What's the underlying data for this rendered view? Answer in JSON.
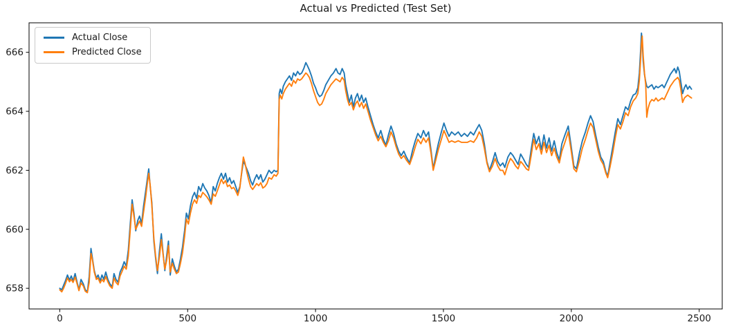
{
  "title": "Actual vs Predicted (Test Set)",
  "chart_data": {
    "type": "line",
    "title": "Actual vs Predicted (Test Set)",
    "xlabel": "",
    "ylabel": "",
    "grid": false,
    "legend_position": "upper left",
    "xlim": [
      -120,
      2590
    ],
    "ylim": [
      657.3,
      667.0
    ],
    "xticks": [
      0,
      500,
      1000,
      1500,
      2000,
      2500
    ],
    "yticks": [
      658,
      660,
      662,
      664,
      666
    ],
    "axis_color": "#000000",
    "tick_label_color": "#1a1a1a",
    "series": [
      {
        "key": "actual",
        "name": "Actual Close",
        "color": "#1f77b4"
      },
      {
        "key": "predicted",
        "name": "Predicted Close",
        "color": "#ff7f0e"
      }
    ],
    "points_format": [
      "x",
      "actual_close",
      "predicted_close"
    ],
    "points": [
      [
        0,
        658.0,
        657.95
      ],
      [
        8,
        657.95,
        657.88
      ],
      [
        15,
        658.1,
        658.0
      ],
      [
        22,
        658.25,
        658.15
      ],
      [
        30,
        658.45,
        658.35
      ],
      [
        38,
        658.28,
        658.22
      ],
      [
        45,
        658.42,
        658.3
      ],
      [
        52,
        658.25,
        658.2
      ],
      [
        60,
        658.5,
        658.38
      ],
      [
        68,
        658.2,
        658.15
      ],
      [
        75,
        657.95,
        657.92
      ],
      [
        83,
        658.3,
        658.18
      ],
      [
        92,
        658.15,
        658.08
      ],
      [
        100,
        657.95,
        657.9
      ],
      [
        108,
        657.88,
        657.85
      ],
      [
        115,
        658.4,
        658.2
      ],
      [
        122,
        659.35,
        659.18
      ],
      [
        128,
        659.0,
        658.95
      ],
      [
        135,
        658.6,
        658.55
      ],
      [
        143,
        658.35,
        658.3
      ],
      [
        150,
        658.45,
        658.35
      ],
      [
        158,
        658.25,
        658.18
      ],
      [
        165,
        658.45,
        658.3
      ],
      [
        172,
        658.3,
        658.22
      ],
      [
        180,
        658.55,
        658.4
      ],
      [
        188,
        658.3,
        658.22
      ],
      [
        196,
        658.15,
        658.08
      ],
      [
        205,
        658.05,
        658.0
      ],
      [
        212,
        658.5,
        658.35
      ],
      [
        220,
        658.3,
        658.2
      ],
      [
        228,
        658.2,
        658.12
      ],
      [
        236,
        658.55,
        658.42
      ],
      [
        244,
        658.7,
        658.58
      ],
      [
        252,
        658.9,
        658.75
      ],
      [
        260,
        658.75,
        658.65
      ],
      [
        268,
        659.3,
        659.1
      ],
      [
        275,
        660.1,
        659.9
      ],
      [
        283,
        661.0,
        660.85
      ],
      [
        290,
        660.55,
        660.45
      ],
      [
        297,
        659.95,
        660.0
      ],
      [
        305,
        660.3,
        660.15
      ],
      [
        312,
        660.45,
        660.28
      ],
      [
        320,
        660.2,
        660.1
      ],
      [
        328,
        660.8,
        660.6
      ],
      [
        336,
        661.3,
        661.1
      ],
      [
        343,
        661.75,
        661.6
      ],
      [
        348,
        662.05,
        661.9
      ],
      [
        354,
        661.4,
        661.45
      ],
      [
        360,
        660.9,
        660.8
      ],
      [
        368,
        659.6,
        659.7
      ],
      [
        375,
        659.0,
        659.08
      ],
      [
        382,
        658.5,
        658.6
      ],
      [
        390,
        659.3,
        659.1
      ],
      [
        397,
        659.85,
        659.65
      ],
      [
        404,
        659.2,
        659.15
      ],
      [
        411,
        658.6,
        658.65
      ],
      [
        418,
        659.1,
        658.95
      ],
      [
        425,
        659.6,
        659.45
      ],
      [
        432,
        658.45,
        658.55
      ],
      [
        440,
        659.0,
        658.85
      ],
      [
        448,
        658.75,
        658.65
      ],
      [
        456,
        658.55,
        658.5
      ],
      [
        464,
        658.65,
        658.55
      ],
      [
        472,
        659.0,
        658.85
      ],
      [
        480,
        659.4,
        659.2
      ],
      [
        488,
        659.95,
        659.75
      ],
      [
        495,
        660.55,
        660.35
      ],
      [
        503,
        660.35,
        660.18
      ],
      [
        511,
        660.8,
        660.55
      ],
      [
        519,
        661.1,
        660.85
      ],
      [
        527,
        661.25,
        661.0
      ],
      [
        535,
        661.05,
        660.88
      ],
      [
        543,
        661.45,
        661.15
      ],
      [
        551,
        661.3,
        661.08
      ],
      [
        559,
        661.55,
        661.25
      ],
      [
        567,
        661.4,
        661.18
      ],
      [
        575,
        661.3,
        661.1
      ],
      [
        583,
        661.15,
        661.0
      ],
      [
        592,
        660.9,
        660.85
      ],
      [
        600,
        661.45,
        661.2
      ],
      [
        608,
        661.3,
        661.12
      ],
      [
        616,
        661.55,
        661.3
      ],
      [
        624,
        661.75,
        661.5
      ],
      [
        632,
        661.9,
        661.7
      ],
      [
        640,
        661.7,
        661.55
      ],
      [
        648,
        661.9,
        661.65
      ],
      [
        656,
        661.6,
        661.45
      ],
      [
        664,
        661.75,
        661.5
      ],
      [
        672,
        661.55,
        661.38
      ],
      [
        680,
        661.65,
        661.42
      ],
      [
        688,
        661.45,
        661.3
      ],
      [
        696,
        661.25,
        661.15
      ],
      [
        704,
        661.45,
        661.4
      ],
      [
        712,
        661.95,
        662.0
      ],
      [
        718,
        662.3,
        662.45
      ],
      [
        724,
        662.2,
        662.25
      ],
      [
        731,
        662.05,
        661.95
      ],
      [
        738,
        661.9,
        661.7
      ],
      [
        746,
        661.65,
        661.45
      ],
      [
        754,
        661.5,
        661.35
      ],
      [
        762,
        661.7,
        661.45
      ],
      [
        770,
        661.85,
        661.55
      ],
      [
        778,
        661.7,
        661.48
      ],
      [
        786,
        661.85,
        661.58
      ],
      [
        794,
        661.6,
        661.4
      ],
      [
        802,
        661.7,
        661.45
      ],
      [
        810,
        661.85,
        661.55
      ],
      [
        818,
        662.0,
        661.75
      ],
      [
        828,
        661.9,
        661.7
      ],
      [
        838,
        662.0,
        661.85
      ],
      [
        846,
        661.95,
        661.8
      ],
      [
        853,
        662.0,
        661.9
      ],
      [
        858,
        664.6,
        664.4
      ],
      [
        862,
        664.75,
        664.55
      ],
      [
        868,
        664.6,
        664.42
      ],
      [
        874,
        664.85,
        664.6
      ],
      [
        882,
        665.0,
        664.75
      ],
      [
        890,
        665.1,
        664.85
      ],
      [
        898,
        665.2,
        664.95
      ],
      [
        906,
        665.05,
        664.85
      ],
      [
        914,
        665.3,
        665.05
      ],
      [
        922,
        665.2,
        664.95
      ],
      [
        930,
        665.35,
        665.1
      ],
      [
        938,
        665.25,
        665.05
      ],
      [
        946,
        665.3,
        665.1
      ],
      [
        954,
        665.45,
        665.2
      ],
      [
        962,
        665.65,
        665.3
      ],
      [
        968,
        665.55,
        665.25
      ],
      [
        976,
        665.4,
        665.15
      ],
      [
        984,
        665.2,
        664.95
      ],
      [
        992,
        664.95,
        664.7
      ],
      [
        1000,
        664.8,
        664.5
      ],
      [
        1008,
        664.6,
        664.3
      ],
      [
        1016,
        664.5,
        664.2
      ],
      [
        1024,
        664.55,
        664.25
      ],
      [
        1032,
        664.7,
        664.4
      ],
      [
        1040,
        664.9,
        664.6
      ],
      [
        1050,
        665.05,
        664.75
      ],
      [
        1060,
        665.2,
        664.9
      ],
      [
        1070,
        665.3,
        665.0
      ],
      [
        1080,
        665.45,
        665.1
      ],
      [
        1088,
        665.3,
        665.05
      ],
      [
        1096,
        665.25,
        665.0
      ],
      [
        1104,
        665.45,
        665.15
      ],
      [
        1112,
        665.3,
        665.05
      ],
      [
        1118,
        664.9,
        664.7
      ],
      [
        1125,
        664.6,
        664.4
      ],
      [
        1132,
        664.3,
        664.2
      ],
      [
        1140,
        664.55,
        664.3
      ],
      [
        1148,
        664.15,
        664.05
      ],
      [
        1156,
        664.45,
        664.25
      ],
      [
        1164,
        664.6,
        664.35
      ],
      [
        1172,
        664.35,
        664.15
      ],
      [
        1180,
        664.55,
        664.3
      ],
      [
        1188,
        664.3,
        664.1
      ],
      [
        1196,
        664.45,
        664.25
      ],
      [
        1205,
        664.15,
        664.0
      ],
      [
        1215,
        663.85,
        663.7
      ],
      [
        1225,
        663.55,
        663.45
      ],
      [
        1235,
        663.3,
        663.2
      ],
      [
        1245,
        663.1,
        663.0
      ],
      [
        1255,
        663.35,
        663.15
      ],
      [
        1265,
        663.05,
        662.95
      ],
      [
        1275,
        662.85,
        662.8
      ],
      [
        1285,
        663.2,
        663.0
      ],
      [
        1295,
        663.5,
        663.3
      ],
      [
        1305,
        663.25,
        663.1
      ],
      [
        1315,
        662.9,
        662.8
      ],
      [
        1325,
        662.65,
        662.55
      ],
      [
        1335,
        662.5,
        662.4
      ],
      [
        1345,
        662.65,
        662.5
      ],
      [
        1355,
        662.45,
        662.35
      ],
      [
        1368,
        662.25,
        662.2
      ],
      [
        1380,
        662.7,
        662.5
      ],
      [
        1390,
        663.0,
        662.8
      ],
      [
        1400,
        663.25,
        663.05
      ],
      [
        1412,
        663.1,
        662.9
      ],
      [
        1422,
        663.35,
        663.1
      ],
      [
        1432,
        663.15,
        662.95
      ],
      [
        1442,
        663.3,
        663.1
      ],
      [
        1452,
        662.65,
        662.55
      ],
      [
        1460,
        662.05,
        662.0
      ],
      [
        1470,
        662.5,
        662.35
      ],
      [
        1480,
        662.9,
        662.7
      ],
      [
        1492,
        663.3,
        663.05
      ],
      [
        1502,
        663.6,
        663.35
      ],
      [
        1512,
        663.35,
        663.15
      ],
      [
        1522,
        663.15,
        662.95
      ],
      [
        1532,
        663.3,
        663.0
      ],
      [
        1545,
        663.2,
        662.95
      ],
      [
        1558,
        663.3,
        663.0
      ],
      [
        1570,
        663.15,
        662.95
      ],
      [
        1582,
        663.25,
        662.95
      ],
      [
        1594,
        663.15,
        662.95
      ],
      [
        1606,
        663.3,
        663.0
      ],
      [
        1618,
        663.2,
        662.95
      ],
      [
        1630,
        663.4,
        663.1
      ],
      [
        1640,
        663.55,
        663.3
      ],
      [
        1650,
        663.35,
        663.15
      ],
      [
        1660,
        662.9,
        662.75
      ],
      [
        1670,
        662.3,
        662.25
      ],
      [
        1680,
        662.0,
        661.95
      ],
      [
        1692,
        662.3,
        662.15
      ],
      [
        1702,
        662.6,
        662.4
      ],
      [
        1712,
        662.3,
        662.15
      ],
      [
        1722,
        662.15,
        662.0
      ],
      [
        1732,
        662.25,
        662.0
      ],
      [
        1740,
        662.1,
        661.85
      ],
      [
        1752,
        662.45,
        662.2
      ],
      [
        1762,
        662.6,
        662.4
      ],
      [
        1772,
        662.5,
        662.3
      ],
      [
        1782,
        662.35,
        662.15
      ],
      [
        1792,
        662.2,
        662.05
      ],
      [
        1802,
        662.55,
        662.3
      ],
      [
        1812,
        662.4,
        662.2
      ],
      [
        1824,
        662.2,
        662.05
      ],
      [
        1833,
        662.1,
        662.0
      ],
      [
        1843,
        662.7,
        662.5
      ],
      [
        1853,
        663.25,
        663.05
      ],
      [
        1863,
        662.9,
        662.7
      ],
      [
        1873,
        663.15,
        662.9
      ],
      [
        1883,
        662.7,
        662.55
      ],
      [
        1893,
        663.2,
        662.95
      ],
      [
        1903,
        662.75,
        662.6
      ],
      [
        1913,
        663.1,
        662.85
      ],
      [
        1923,
        662.65,
        662.5
      ],
      [
        1933,
        663.0,
        662.75
      ],
      [
        1943,
        662.6,
        662.45
      ],
      [
        1953,
        662.35,
        662.25
      ],
      [
        1963,
        662.9,
        662.65
      ],
      [
        1975,
        663.2,
        662.95
      ],
      [
        1988,
        663.5,
        663.3
      ],
      [
        1998,
        662.9,
        662.75
      ],
      [
        2010,
        662.15,
        662.05
      ],
      [
        2020,
        662.05,
        661.95
      ],
      [
        2032,
        662.6,
        662.35
      ],
      [
        2043,
        663.0,
        662.75
      ],
      [
        2055,
        663.3,
        663.05
      ],
      [
        2065,
        663.6,
        663.35
      ],
      [
        2075,
        663.85,
        663.6
      ],
      [
        2085,
        663.65,
        663.45
      ],
      [
        2095,
        663.2,
        663.05
      ],
      [
        2105,
        662.8,
        662.65
      ],
      [
        2115,
        662.45,
        662.35
      ],
      [
        2125,
        662.3,
        662.2
      ],
      [
        2135,
        661.95,
        661.9
      ],
      [
        2142,
        661.8,
        661.75
      ],
      [
        2152,
        662.3,
        662.15
      ],
      [
        2162,
        662.8,
        662.6
      ],
      [
        2172,
        663.3,
        663.1
      ],
      [
        2182,
        663.75,
        663.55
      ],
      [
        2192,
        663.55,
        663.4
      ],
      [
        2202,
        663.85,
        663.65
      ],
      [
        2212,
        664.15,
        663.95
      ],
      [
        2222,
        664.05,
        663.85
      ],
      [
        2232,
        664.35,
        664.15
      ],
      [
        2242,
        664.55,
        664.35
      ],
      [
        2252,
        664.6,
        664.45
      ],
      [
        2260,
        664.8,
        664.6
      ],
      [
        2266,
        665.3,
        665.05
      ],
      [
        2271,
        666.1,
        665.8
      ],
      [
        2274,
        666.65,
        666.3
      ],
      [
        2277,
        666.4,
        666.55
      ],
      [
        2281,
        665.7,
        665.9
      ],
      [
        2286,
        665.25,
        665.3
      ],
      [
        2291,
        665.0,
        664.9
      ],
      [
        2295,
        664.85,
        663.8
      ],
      [
        2300,
        664.8,
        664.1
      ],
      [
        2307,
        664.85,
        664.3
      ],
      [
        2315,
        664.9,
        664.4
      ],
      [
        2323,
        664.75,
        664.35
      ],
      [
        2331,
        664.85,
        664.45
      ],
      [
        2339,
        664.8,
        664.35
      ],
      [
        2347,
        664.85,
        664.4
      ],
      [
        2355,
        664.9,
        664.45
      ],
      [
        2363,
        664.8,
        664.4
      ],
      [
        2371,
        664.95,
        664.55
      ],
      [
        2379,
        665.1,
        664.7
      ],
      [
        2387,
        665.25,
        664.85
      ],
      [
        2395,
        665.35,
        664.95
      ],
      [
        2403,
        665.45,
        665.05
      ],
      [
        2410,
        665.3,
        665.1
      ],
      [
        2416,
        665.5,
        665.15
      ],
      [
        2422,
        665.35,
        665.05
      ],
      [
        2428,
        665.0,
        664.75
      ],
      [
        2435,
        664.6,
        664.3
      ],
      [
        2442,
        664.8,
        664.45
      ],
      [
        2448,
        664.9,
        664.5
      ],
      [
        2455,
        664.75,
        664.55
      ],
      [
        2462,
        664.85,
        664.5
      ],
      [
        2470,
        664.75,
        664.45
      ]
    ]
  }
}
